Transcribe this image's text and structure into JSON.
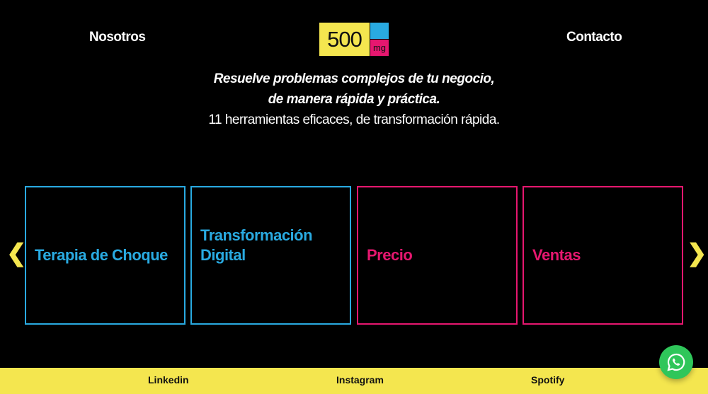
{
  "header": {
    "nav_left": "Nosotros",
    "nav_right": "Contacto",
    "logo": {
      "number": "500",
      "unit": "mg"
    }
  },
  "hero": {
    "line1": "Resuelve problemas complejos de tu negocio,",
    "line2": "de manera rápida y práctica.",
    "line3": "11 herramientas eficaces, de transformación rápida."
  },
  "carousel": {
    "cards": [
      {
        "label": "Terapia de Choque",
        "color": "#29aae1"
      },
      {
        "label": "Transformación Digital",
        "color": "#29aae1"
      },
      {
        "label": "Precio",
        "color": "#e6176f"
      },
      {
        "label": "Ventas",
        "color": "#e6176f"
      }
    ],
    "prev_icon": "chevron-left-icon",
    "next_icon": "chevron-right-icon"
  },
  "footer": {
    "links": [
      "Linkedin",
      "Instagram",
      "Spotify"
    ]
  },
  "colors": {
    "yellow": "#f4e64f",
    "blue": "#29aae1",
    "pink": "#e6176f",
    "whatsapp": "#2fc65a"
  }
}
